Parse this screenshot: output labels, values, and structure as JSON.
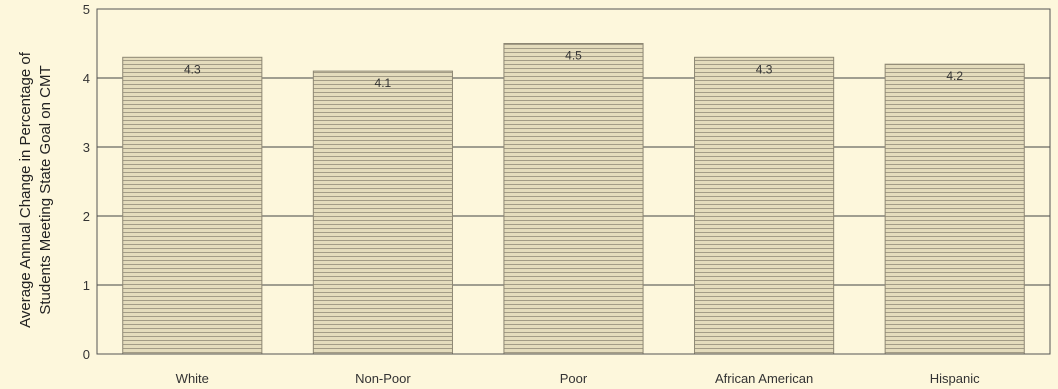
{
  "chart_data": {
    "type": "bar",
    "categories": [
      "White",
      "Non-Poor",
      "Poor",
      "African American",
      "Hispanic"
    ],
    "values": [
      4.3,
      4.1,
      4.5,
      4.3,
      4.2
    ],
    "data_labels": [
      "4.3",
      "4.1",
      "4.5",
      "4.3",
      "4.2"
    ],
    "ylabel_lines": [
      "Average Annual Change in Percentage of",
      "Students Meeting State Goal on CMT"
    ],
    "ylim": [
      0,
      5
    ],
    "yticks": [
      0,
      1,
      2,
      3,
      4,
      5
    ],
    "ytick_labels": [
      "0",
      "1",
      "2",
      "3",
      "4",
      "5"
    ],
    "grid": true,
    "legend": "none"
  },
  "colors": {
    "background": "#fdf7dc",
    "bar_fill": "#e4dcbc",
    "bar_hatch": "#a39c86",
    "bar_edge": "#8d8773",
    "axis": "#555555",
    "grid": "#444444"
  }
}
